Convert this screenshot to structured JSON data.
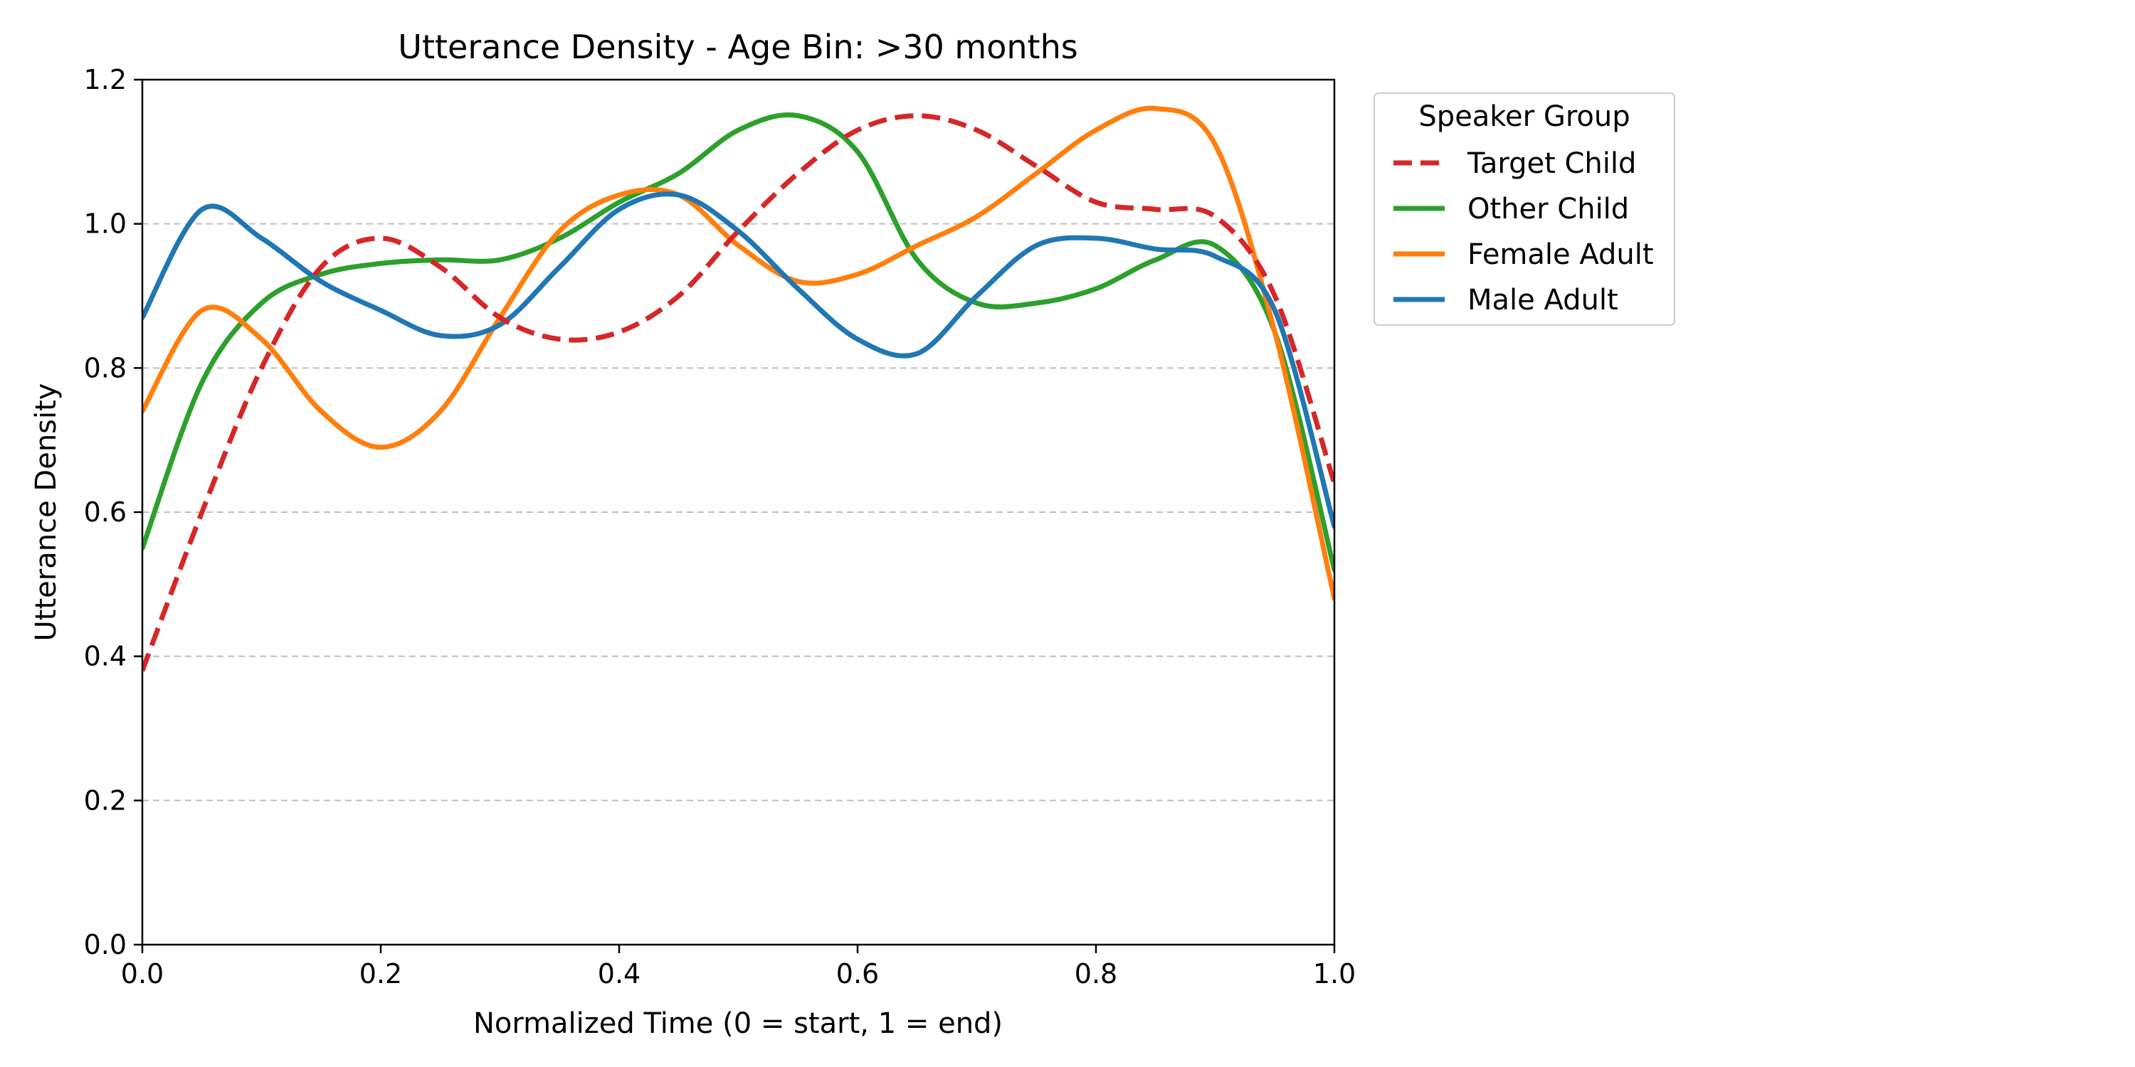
{
  "chart_data": {
    "type": "line",
    "title": "Utterance Density - Age Bin: >30 months",
    "xlabel": "Normalized Time (0 = start, 1 = end)",
    "ylabel": "Utterance Density",
    "xlim": [
      0.0,
      1.0
    ],
    "ylim": [
      0.0,
      1.2
    ],
    "x_ticks": [
      "0.0",
      "0.2",
      "0.4",
      "0.6",
      "0.8",
      "1.0"
    ],
    "y_ticks": [
      "0.0",
      "0.2",
      "0.4",
      "0.6",
      "0.8",
      "1.0",
      "1.2"
    ],
    "grid": "horizontal dashed",
    "legend": {
      "title": "Speaker Group",
      "placement": "outside upper-right"
    },
    "series": [
      {
        "name": "Target Child",
        "color": "#d62728",
        "style": "dashed",
        "x": [
          0.0,
          0.05,
          0.1,
          0.15,
          0.2,
          0.25,
          0.3,
          0.35,
          0.4,
          0.45,
          0.5,
          0.55,
          0.6,
          0.65,
          0.7,
          0.75,
          0.8,
          0.85,
          0.9,
          0.95,
          1.0
        ],
        "y": [
          0.38,
          0.6,
          0.8,
          0.94,
          0.98,
          0.94,
          0.87,
          0.84,
          0.85,
          0.9,
          0.99,
          1.07,
          1.13,
          1.15,
          1.13,
          1.08,
          1.03,
          1.02,
          1.01,
          0.9,
          0.64
        ]
      },
      {
        "name": "Other Child",
        "color": "#2ca02c",
        "style": "solid",
        "x": [
          0.0,
          0.05,
          0.1,
          0.15,
          0.2,
          0.25,
          0.3,
          0.35,
          0.4,
          0.45,
          0.5,
          0.55,
          0.6,
          0.65,
          0.7,
          0.75,
          0.8,
          0.85,
          0.9,
          0.95,
          1.0
        ],
        "y": [
          0.55,
          0.78,
          0.89,
          0.93,
          0.945,
          0.95,
          0.95,
          0.98,
          1.03,
          1.07,
          1.13,
          1.15,
          1.1,
          0.95,
          0.89,
          0.89,
          0.91,
          0.95,
          0.97,
          0.85,
          0.52
        ]
      },
      {
        "name": "Female Adult",
        "color": "#ff7f0e",
        "style": "solid",
        "x": [
          0.0,
          0.05,
          0.1,
          0.15,
          0.2,
          0.25,
          0.3,
          0.35,
          0.4,
          0.45,
          0.5,
          0.55,
          0.6,
          0.65,
          0.7,
          0.75,
          0.8,
          0.85,
          0.9,
          0.95,
          1.0
        ],
        "y": [
          0.74,
          0.88,
          0.84,
          0.74,
          0.69,
          0.74,
          0.87,
          0.99,
          1.04,
          1.04,
          0.97,
          0.92,
          0.93,
          0.97,
          1.01,
          1.07,
          1.13,
          1.16,
          1.11,
          0.85,
          0.48
        ]
      },
      {
        "name": "Male Adult",
        "color": "#1f77b4",
        "style": "solid",
        "x": [
          0.0,
          0.05,
          0.1,
          0.15,
          0.2,
          0.25,
          0.3,
          0.35,
          0.4,
          0.45,
          0.5,
          0.55,
          0.6,
          0.65,
          0.7,
          0.75,
          0.8,
          0.85,
          0.9,
          0.95,
          1.0
        ],
        "y": [
          0.87,
          1.02,
          0.98,
          0.92,
          0.88,
          0.845,
          0.86,
          0.94,
          1.02,
          1.04,
          0.99,
          0.91,
          0.84,
          0.82,
          0.9,
          0.97,
          0.98,
          0.965,
          0.955,
          0.88,
          0.58
        ]
      }
    ]
  }
}
